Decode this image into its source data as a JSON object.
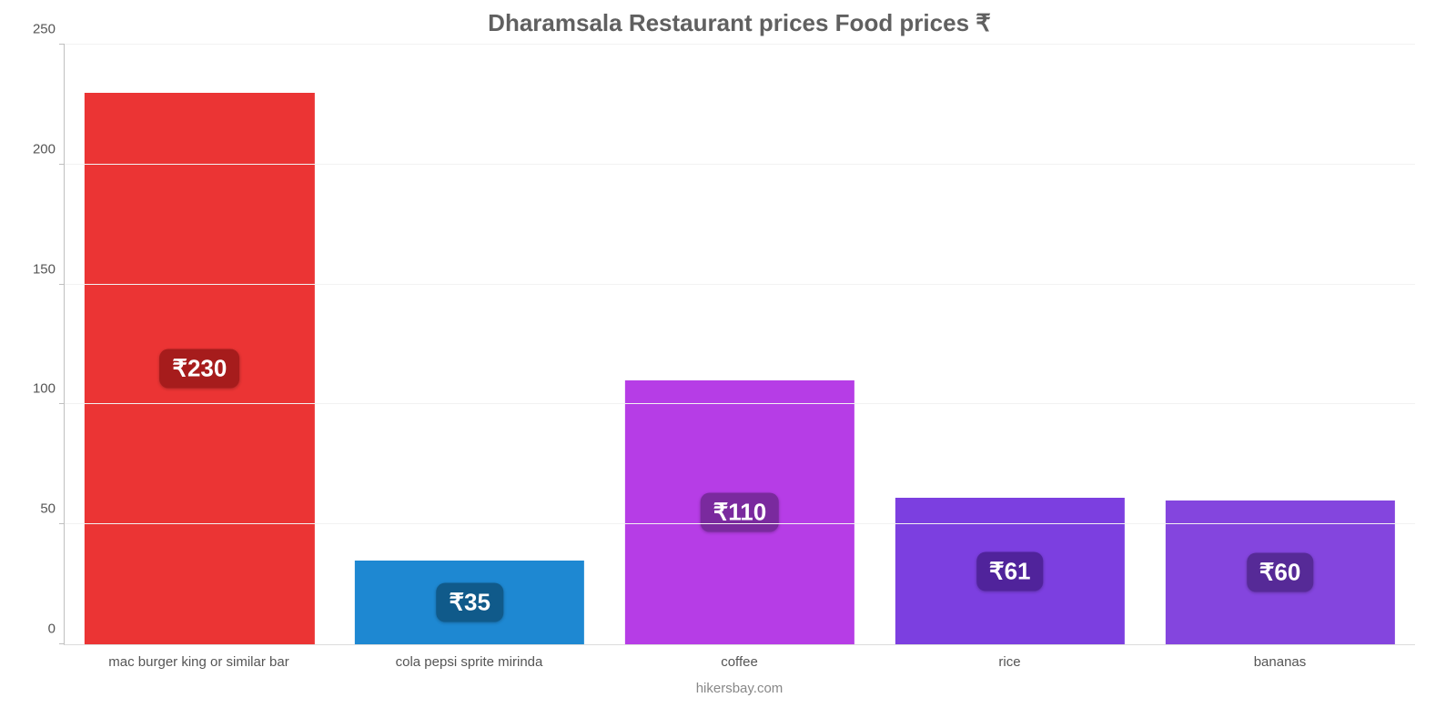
{
  "chart": {
    "type": "bar",
    "title": "Dharamsala Restaurant prices Food prices ₹",
    "title_color": "#606060",
    "title_fontsize": 26,
    "background_color": "#ffffff",
    "grid_color": "#f2f2f2",
    "axis_line_color": "#bfbfbf",
    "xlabel_color": "#555555",
    "ylabel_color": "#555555",
    "ymax": 250,
    "ytick_step": 50,
    "yticks": [
      0,
      50,
      100,
      150,
      200,
      250
    ],
    "bar_width_pct": 85,
    "value_badge_fontsize": 26,
    "categories": [
      {
        "label": "mac burger king or similar bar",
        "value": 230,
        "display": "₹230",
        "bar_color": "#eb3434",
        "badge_bg": "#a61c1c"
      },
      {
        "label": "cola pepsi sprite mirinda",
        "value": 35,
        "display": "₹35",
        "bar_color": "#1e88d2",
        "badge_bg": "#105a8a"
      },
      {
        "label": "coffee",
        "value": 110,
        "display": "₹110",
        "bar_color": "#b63de6",
        "badge_bg": "#7a2a9e"
      },
      {
        "label": "rice",
        "value": 61,
        "display": "₹61",
        "bar_color": "#7c3fe0",
        "badge_bg": "#50239b"
      },
      {
        "label": "bananas",
        "value": 60,
        "display": "₹60",
        "bar_color": "#8445de",
        "badge_bg": "#562a97"
      }
    ],
    "attribution": "hikersbay.com",
    "attribution_color": "#888888"
  }
}
